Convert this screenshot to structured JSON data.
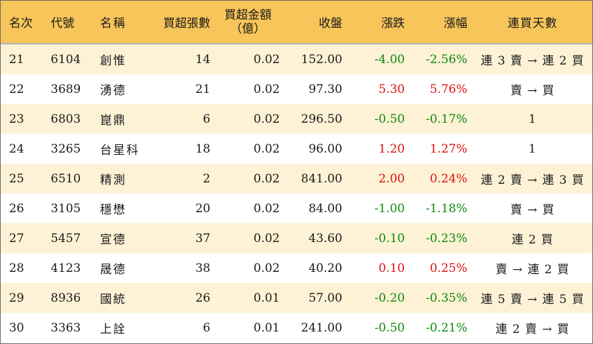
{
  "headers": {
    "rank": "名次",
    "code": "代號",
    "name": "名稱",
    "net_buy_lots": "買超張數",
    "net_buy_amount_line1": "買超金額",
    "net_buy_amount_line2": "（億）",
    "close": "收盤",
    "change": "漲跌",
    "change_pct": "漲幅",
    "streak": "連買天數"
  },
  "colors": {
    "header_bg": "#f7c55a",
    "row_alt_bg": "#fdf2d6",
    "up": "#e01010",
    "down": "#0d8a0d"
  },
  "rows": [
    {
      "rank": "21",
      "code": "6104",
      "name": "創惟",
      "lots": "14",
      "amount": "0.02",
      "close": "152.00",
      "change": "-4.00",
      "pct": "-2.56%",
      "streak": "連 3 賣 → 連 2 買",
      "dir": "down"
    },
    {
      "rank": "22",
      "code": "3689",
      "name": "湧德",
      "lots": "21",
      "amount": "0.02",
      "close": "97.30",
      "change": "5.30",
      "pct": "5.76%",
      "streak": "賣 → 買",
      "dir": "up"
    },
    {
      "rank": "23",
      "code": "6803",
      "name": "崑鼎",
      "lots": "6",
      "amount": "0.02",
      "close": "296.50",
      "change": "-0.50",
      "pct": "-0.17%",
      "streak": "1",
      "dir": "down"
    },
    {
      "rank": "24",
      "code": "3265",
      "name": "台星科",
      "lots": "18",
      "amount": "0.02",
      "close": "96.00",
      "change": "1.20",
      "pct": "1.27%",
      "streak": "1",
      "dir": "up"
    },
    {
      "rank": "25",
      "code": "6510",
      "name": "精測",
      "lots": "2",
      "amount": "0.02",
      "close": "841.00",
      "change": "2.00",
      "pct": "0.24%",
      "streak": "連 2 賣 → 連 3 買",
      "dir": "up"
    },
    {
      "rank": "26",
      "code": "3105",
      "name": "穩懋",
      "lots": "20",
      "amount": "0.02",
      "close": "84.00",
      "change": "-1.00",
      "pct": "-1.18%",
      "streak": "賣 → 買",
      "dir": "down"
    },
    {
      "rank": "27",
      "code": "5457",
      "name": "宣德",
      "lots": "37",
      "amount": "0.02",
      "close": "43.60",
      "change": "-0.10",
      "pct": "-0.23%",
      "streak": "連 2 買",
      "dir": "down"
    },
    {
      "rank": "28",
      "code": "4123",
      "name": "晟德",
      "lots": "38",
      "amount": "0.02",
      "close": "40.20",
      "change": "0.10",
      "pct": "0.25%",
      "streak": "賣 → 連 2 買",
      "dir": "up"
    },
    {
      "rank": "29",
      "code": "8936",
      "name": "國統",
      "lots": "26",
      "amount": "0.01",
      "close": "57.00",
      "change": "-0.20",
      "pct": "-0.35%",
      "streak": "連 5 賣 → 連 5 買",
      "dir": "down"
    },
    {
      "rank": "30",
      "code": "3363",
      "name": "上詮",
      "lots": "6",
      "amount": "0.01",
      "close": "241.00",
      "change": "-0.50",
      "pct": "-0.21%",
      "streak": "連 2 賣 → 買",
      "dir": "down"
    }
  ]
}
